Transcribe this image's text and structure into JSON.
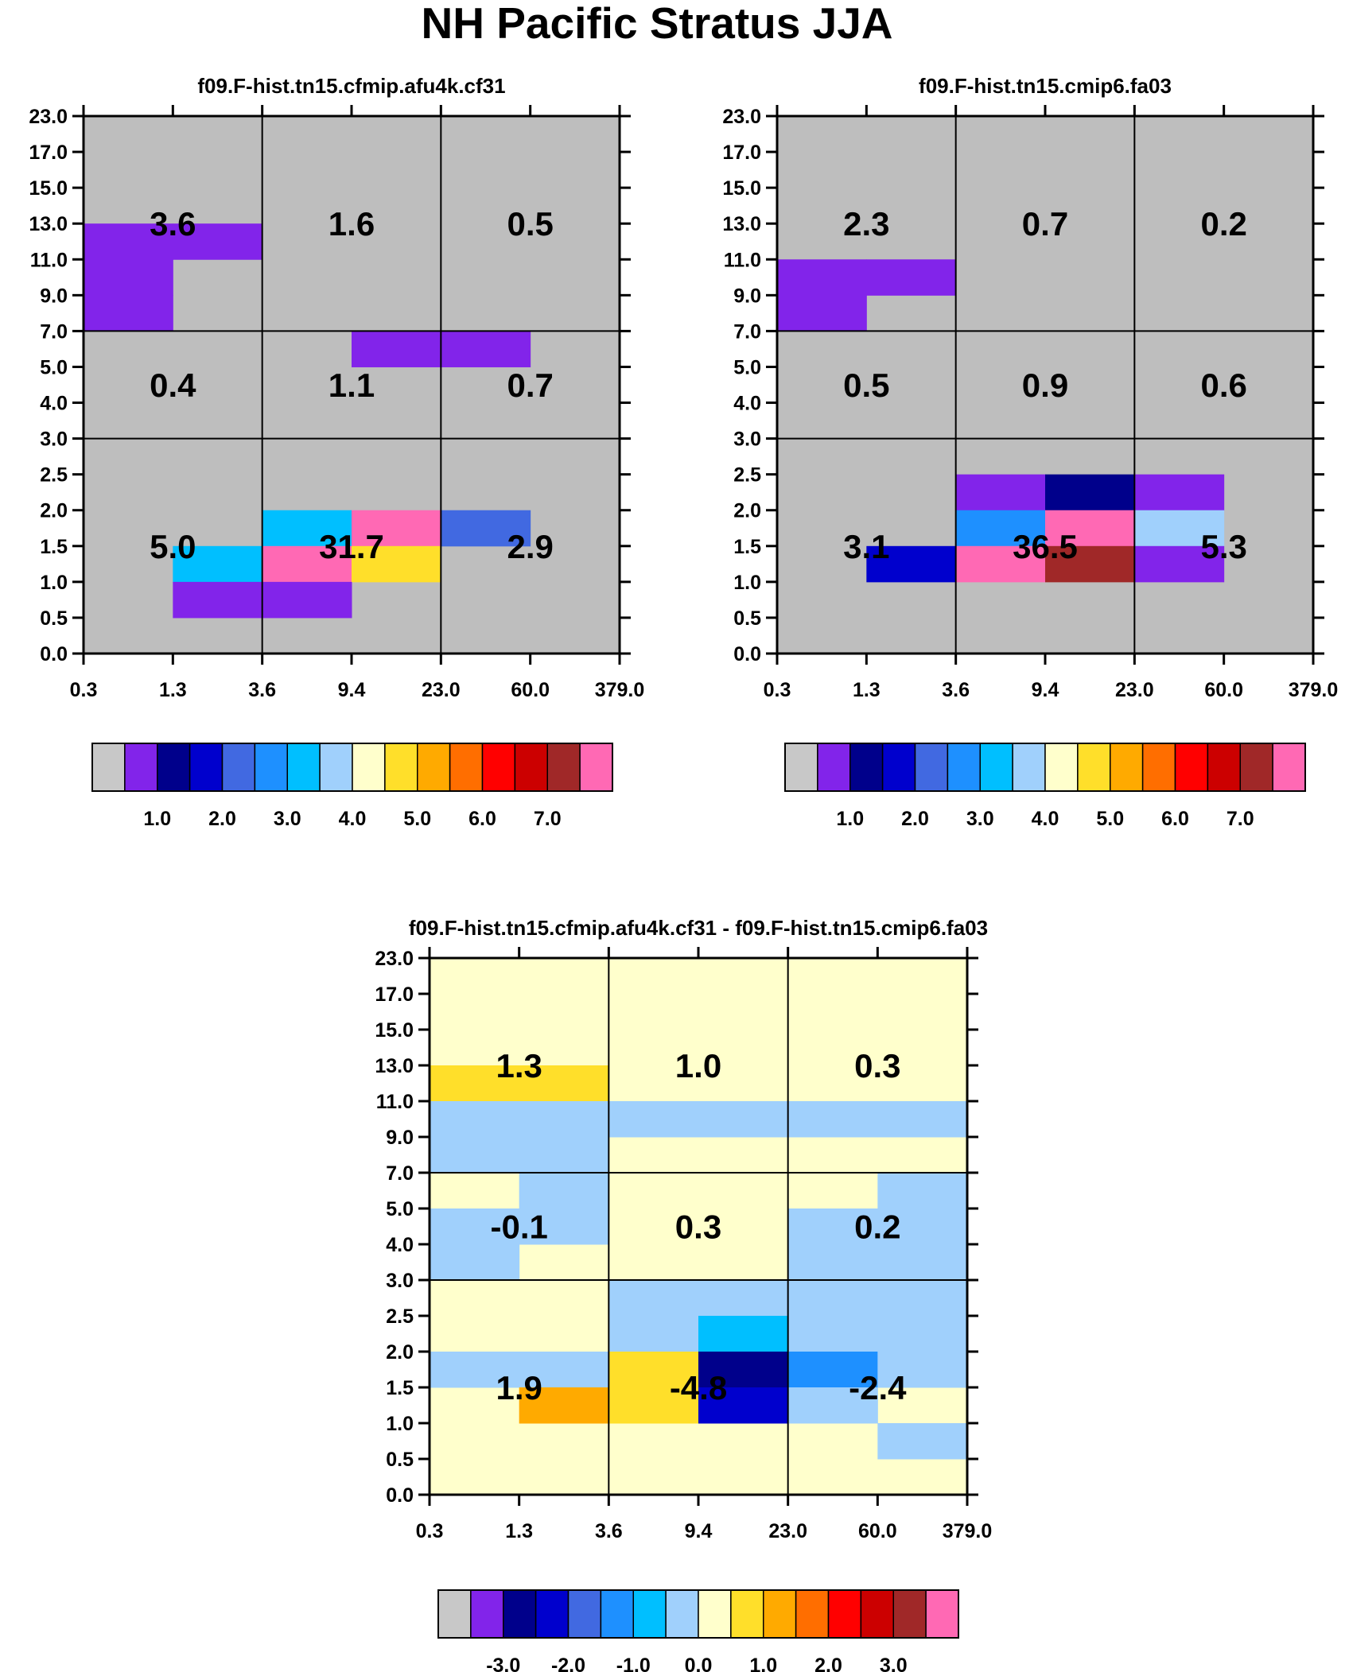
{
  "figure_title": "NH Pacific Stratus JJA",
  "colors": {
    "palette": [
      "#c8c8c8",
      "#8224ea",
      "#00008b",
      "#0000cd",
      "#4169e1",
      "#1e90ff",
      "#00bfff",
      "#a0d0fc",
      "#ffffcc",
      "#ffdf2a",
      "#ffaa00",
      "#ff6e00",
      "#ff0000",
      "#cc0000",
      "#a02828",
      "#ff69b4"
    ],
    "background": "#bebebe",
    "diff_background": "#ffffcc"
  },
  "chart_data": [
    {
      "type": "heatmap",
      "title": "f09.F-hist.tn15.cfmip.afu4k.cf31",
      "xlabel": "",
      "ylabel": "",
      "x_tick_labels": [
        "0.3",
        "1.3",
        "3.6",
        "9.4",
        "23.0",
        "60.0",
        "379.0"
      ],
      "y_tick_labels": [
        "0.0",
        "0.5",
        "1.0",
        "1.5",
        "2.0",
        "2.5",
        "3.0",
        "4.0",
        "5.0",
        "7.0",
        "9.0",
        "11.0",
        "13.0",
        "15.0",
        "17.0",
        "23.0"
      ],
      "colored_cells": [
        {
          "x": 0,
          "y": 11,
          "color": 1
        },
        {
          "x": 1,
          "y": 11,
          "color": 1
        },
        {
          "x": 0,
          "y": 10,
          "color": 1
        },
        {
          "x": 0,
          "y": 9,
          "color": 1
        },
        {
          "x": 3,
          "y": 8,
          "color": 1
        },
        {
          "x": 4,
          "y": 8,
          "color": 1
        },
        {
          "x": 2,
          "y": 3,
          "color": 6
        },
        {
          "x": 3,
          "y": 3,
          "color": 15
        },
        {
          "x": 4,
          "y": 3,
          "color": 4
        },
        {
          "x": 1,
          "y": 2,
          "color": 6
        },
        {
          "x": 2,
          "y": 2,
          "color": 15
        },
        {
          "x": 3,
          "y": 2,
          "color": 9
        },
        {
          "x": 1,
          "y": 1,
          "color": 1
        },
        {
          "x": 2,
          "y": 1,
          "color": 1
        }
      ],
      "cell_totals": [
        {
          "col": 0,
          "row": 2,
          "value": "3.6"
        },
        {
          "col": 1,
          "row": 2,
          "value": "1.6"
        },
        {
          "col": 2,
          "row": 2,
          "value": "0.5"
        },
        {
          "col": 0,
          "row": 1,
          "value": "0.4"
        },
        {
          "col": 1,
          "row": 1,
          "value": "1.1"
        },
        {
          "col": 2,
          "row": 1,
          "value": "0.7"
        },
        {
          "col": 0,
          "row": 0,
          "value": "5.0"
        },
        {
          "col": 1,
          "row": 0,
          "value": "31.7"
        },
        {
          "col": 2,
          "row": 0,
          "value": "2.9"
        }
      ],
      "colorbar": {
        "tick_labels": [
          "1.0",
          "2.0",
          "3.0",
          "4.0",
          "5.0",
          "6.0",
          "7.0"
        ],
        "colors": [
          0,
          1,
          2,
          3,
          4,
          5,
          6,
          7,
          8,
          9,
          10,
          11,
          12,
          13,
          14,
          15
        ]
      }
    },
    {
      "type": "heatmap",
      "title": "f09.F-hist.tn15.cmip6.fa03",
      "xlabel": "",
      "ylabel": "",
      "x_tick_labels": [
        "0.3",
        "1.3",
        "3.6",
        "9.4",
        "23.0",
        "60.0",
        "379.0"
      ],
      "y_tick_labels": [
        "0.0",
        "0.5",
        "1.0",
        "1.5",
        "2.0",
        "2.5",
        "3.0",
        "4.0",
        "5.0",
        "7.0",
        "9.0",
        "11.0",
        "13.0",
        "15.0",
        "17.0",
        "23.0"
      ],
      "colored_cells": [
        {
          "x": 0,
          "y": 10,
          "color": 1
        },
        {
          "x": 1,
          "y": 10,
          "color": 1
        },
        {
          "x": 0,
          "y": 9,
          "color": 1
        },
        {
          "x": 2,
          "y": 4,
          "color": 1
        },
        {
          "x": 3,
          "y": 4,
          "color": 2
        },
        {
          "x": 4,
          "y": 4,
          "color": 1
        },
        {
          "x": 2,
          "y": 3,
          "color": 5
        },
        {
          "x": 3,
          "y": 3,
          "color": 15
        },
        {
          "x": 4,
          "y": 3,
          "color": 7
        },
        {
          "x": 1,
          "y": 2,
          "color": 3
        },
        {
          "x": 2,
          "y": 2,
          "color": 15
        },
        {
          "x": 3,
          "y": 2,
          "color": 14
        },
        {
          "x": 4,
          "y": 2,
          "color": 1
        }
      ],
      "cell_totals": [
        {
          "col": 0,
          "row": 2,
          "value": "2.3"
        },
        {
          "col": 1,
          "row": 2,
          "value": "0.7"
        },
        {
          "col": 2,
          "row": 2,
          "value": "0.2"
        },
        {
          "col": 0,
          "row": 1,
          "value": "0.5"
        },
        {
          "col": 1,
          "row": 1,
          "value": "0.9"
        },
        {
          "col": 2,
          "row": 1,
          "value": "0.6"
        },
        {
          "col": 0,
          "row": 0,
          "value": "3.1"
        },
        {
          "col": 1,
          "row": 0,
          "value": "36.5"
        },
        {
          "col": 2,
          "row": 0,
          "value": "5.3"
        }
      ],
      "colorbar": {
        "tick_labels": [
          "1.0",
          "2.0",
          "3.0",
          "4.0",
          "5.0",
          "6.0",
          "7.0"
        ],
        "colors": [
          0,
          1,
          2,
          3,
          4,
          5,
          6,
          7,
          8,
          9,
          10,
          11,
          12,
          13,
          14,
          15
        ]
      }
    },
    {
      "type": "heatmap",
      "title": "f09.F-hist.tn15.cfmip.afu4k.cf31 - f09.F-hist.tn15.cmip6.fa03",
      "xlabel": "",
      "ylabel": "",
      "x_tick_labels": [
        "0.3",
        "1.3",
        "3.6",
        "9.4",
        "23.0",
        "60.0",
        "379.0"
      ],
      "y_tick_labels": [
        "0.0",
        "0.5",
        "1.0",
        "1.5",
        "2.0",
        "2.5",
        "3.0",
        "4.0",
        "5.0",
        "7.0",
        "9.0",
        "11.0",
        "13.0",
        "15.0",
        "17.0",
        "23.0"
      ],
      "colored_cells": [
        {
          "x": 0,
          "y": 11,
          "color": 9
        },
        {
          "x": 1,
          "y": 11,
          "color": 9
        },
        {
          "x": 0,
          "y": 10,
          "color": 7
        },
        {
          "x": 1,
          "y": 10,
          "color": 7
        },
        {
          "x": 2,
          "y": 10,
          "color": 7
        },
        {
          "x": 3,
          "y": 10,
          "color": 7
        },
        {
          "x": 4,
          "y": 10,
          "color": 7
        },
        {
          "x": 5,
          "y": 10,
          "color": 7
        },
        {
          "x": 0,
          "y": 9,
          "color": 7
        },
        {
          "x": 1,
          "y": 9,
          "color": 7
        },
        {
          "x": 1,
          "y": 8,
          "color": 7
        },
        {
          "x": 5,
          "y": 8,
          "color": 7
        },
        {
          "x": 0,
          "y": 7,
          "color": 7
        },
        {
          "x": 1,
          "y": 7,
          "color": 7
        },
        {
          "x": 4,
          "y": 7,
          "color": 7
        },
        {
          "x": 5,
          "y": 7,
          "color": 7
        },
        {
          "x": 0,
          "y": 6,
          "color": 7
        },
        {
          "x": 4,
          "y": 6,
          "color": 7
        },
        {
          "x": 5,
          "y": 6,
          "color": 7
        },
        {
          "x": 2,
          "y": 5,
          "color": 7
        },
        {
          "x": 3,
          "y": 5,
          "color": 7
        },
        {
          "x": 4,
          "y": 5,
          "color": 7
        },
        {
          "x": 5,
          "y": 5,
          "color": 7
        },
        {
          "x": 2,
          "y": 4,
          "color": 7
        },
        {
          "x": 3,
          "y": 4,
          "color": 6
        },
        {
          "x": 4,
          "y": 4,
          "color": 7
        },
        {
          "x": 5,
          "y": 4,
          "color": 7
        },
        {
          "x": 0,
          "y": 3,
          "color": 7
        },
        {
          "x": 1,
          "y": 3,
          "color": 7
        },
        {
          "x": 2,
          "y": 3,
          "color": 9
        },
        {
          "x": 3,
          "y": 3,
          "color": 2
        },
        {
          "x": 4,
          "y": 3,
          "color": 5
        },
        {
          "x": 5,
          "y": 3,
          "color": 7
        },
        {
          "x": 1,
          "y": 2,
          "color": 10
        },
        {
          "x": 2,
          "y": 2,
          "color": 9
        },
        {
          "x": 3,
          "y": 2,
          "color": 3
        },
        {
          "x": 4,
          "y": 2,
          "color": 7
        },
        {
          "x": 5,
          "y": 1,
          "color": 7
        }
      ],
      "cell_totals": [
        {
          "col": 0,
          "row": 2,
          "value": "1.3"
        },
        {
          "col": 1,
          "row": 2,
          "value": "1.0"
        },
        {
          "col": 2,
          "row": 2,
          "value": "0.3"
        },
        {
          "col": 0,
          "row": 1,
          "value": "-0.1"
        },
        {
          "col": 1,
          "row": 1,
          "value": "0.3"
        },
        {
          "col": 2,
          "row": 1,
          "value": "0.2"
        },
        {
          "col": 0,
          "row": 0,
          "value": "1.9"
        },
        {
          "col": 1,
          "row": 0,
          "value": "-4.8"
        },
        {
          "col": 2,
          "row": 0,
          "value": "-2.4"
        }
      ],
      "colorbar": {
        "tick_labels": [
          "-3.0",
          "-2.0",
          "-1.0",
          "0.0",
          "1.0",
          "2.0",
          "3.0"
        ],
        "colors": [
          0,
          1,
          2,
          3,
          4,
          5,
          6,
          7,
          8,
          9,
          10,
          11,
          12,
          13,
          14,
          15
        ]
      }
    }
  ]
}
